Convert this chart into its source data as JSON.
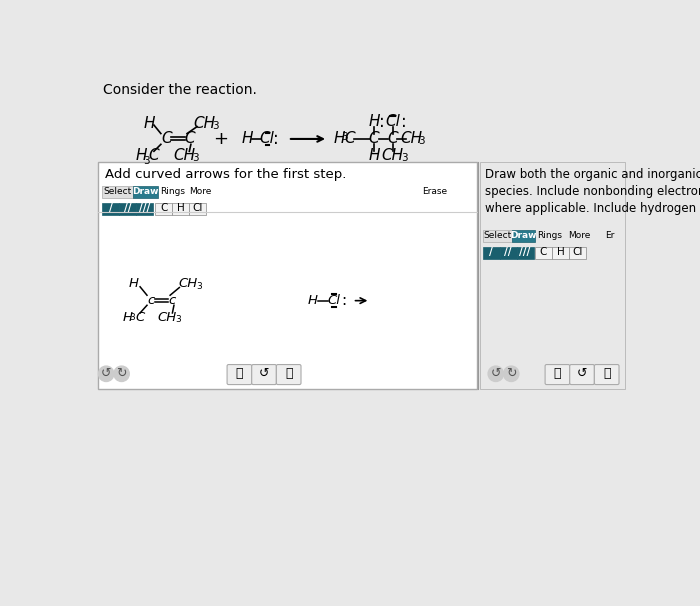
{
  "title": "Consider the reaction.",
  "bg_color": "#e8e8e8",
  "white": "#ffffff",
  "teal": "#2a7a8c",
  "dark_teal": "#1a5f6e",
  "left_panel_title": "Add curved arrows for the first step.",
  "right_panel_title": "Draw both the organic and inorganic intermediate\nspecies. Include nonbonding electrons and charges,\nwhere applicable. Include hydrogen atoms."
}
